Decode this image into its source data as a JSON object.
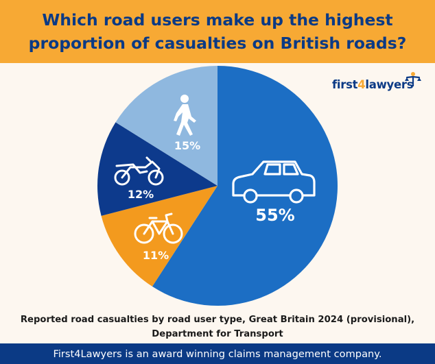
{
  "header": {
    "title": "Which road users make up the highest proportion of casualties on British roads?"
  },
  "logo": {
    "part1": "first",
    "part2": "4",
    "part3": "lawyers"
  },
  "chart_data": {
    "type": "pie",
    "slices": [
      {
        "category": "Car users",
        "value": 55,
        "label": "55%",
        "color": "#1c6ec4",
        "icon": "car-icon"
      },
      {
        "category": "Pedal cyclists",
        "value": 11,
        "label": "11%",
        "color": "#f39a1e",
        "icon": "bicycle-icon"
      },
      {
        "category": "Motorcyclists",
        "value": 12,
        "label": "12%",
        "color": "#0d3a8c",
        "icon": "motorcycle-icon"
      },
      {
        "category": "Pedestrians",
        "value": 15,
        "label": "15%",
        "color": "#8fb8df",
        "icon": "pedestrian-icon"
      }
    ],
    "start_angle": "12 o'clock",
    "direction": "clockwise"
  },
  "source": {
    "line1": "Reported road casualties by road user type, Great Britain 2024 (provisional),",
    "line2": "Department for Transport"
  },
  "footer": {
    "text": "First4Lawyers is an award winning claims management company."
  }
}
